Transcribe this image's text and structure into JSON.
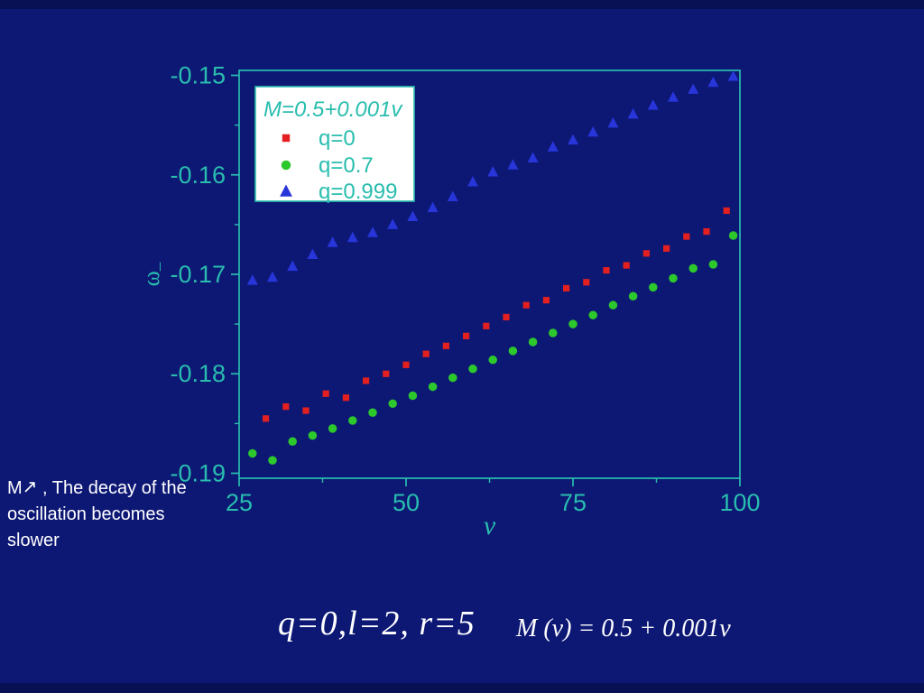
{
  "slide": {
    "note": {
      "line1_prefix": "M",
      "arrow_icon": "↗",
      "line1_suffix": " ,  The decay of the",
      "line2": "oscillation becomes",
      "line3": "slower"
    },
    "caption": "q=0,l=2, r=5",
    "formula": "M (v) = 0.5 + 0.001v"
  },
  "colors": {
    "background": "#0d1875",
    "strip": "#071153",
    "text": "#ffffff",
    "axis": "#29bdae",
    "legend_bg": "#ffffff",
    "series_red": "#e31f1f",
    "series_green": "#2cc82c",
    "series_blue": "#2735d9"
  },
  "chart_data": {
    "type": "scatter",
    "title": "",
    "xlabel": "v",
    "ylabel_main": "ω",
    "ylabel_sub": "–",
    "xlim": [
      25,
      100
    ],
    "ylim": [
      -0.1905,
      -0.1495
    ],
    "grid": false,
    "x_ticks": [
      25,
      50,
      75,
      100
    ],
    "x_tick_labels": [
      "25",
      "50",
      "75",
      "100"
    ],
    "x_minor_ticks": [
      37.5,
      62.5,
      87.5
    ],
    "y_ticks": [
      -0.15,
      -0.16,
      -0.17,
      -0.18,
      -0.19
    ],
    "y_tick_labels": [
      "-0.15",
      "-0.16",
      "-0.17",
      "-0.18",
      "-0.19"
    ],
    "y_minor_ticks": [
      -0.155,
      -0.165,
      -0.175,
      -0.185
    ],
    "legend": {
      "position": "top-left",
      "title": "M=0.5+0.001v",
      "entries": [
        {
          "label": "q=0",
          "marker": "square",
          "color": "#e31f1f"
        },
        {
          "label": "q=0.7",
          "marker": "circle",
          "color": "#2cc82c"
        },
        {
          "label": "q=0.999",
          "marker": "triangle",
          "color": "#2735d9"
        }
      ]
    },
    "series": [
      {
        "name": "q=0",
        "marker": "square",
        "color": "#e31f1f",
        "points": [
          [
            29,
            -0.1845
          ],
          [
            32,
            -0.1833
          ],
          [
            35,
            -0.1837
          ],
          [
            38,
            -0.182
          ],
          [
            41,
            -0.1824
          ],
          [
            44,
            -0.1807
          ],
          [
            47,
            -0.18
          ],
          [
            50,
            -0.1791
          ],
          [
            53,
            -0.178
          ],
          [
            56,
            -0.1772
          ],
          [
            59,
            -0.1762
          ],
          [
            62,
            -0.1752
          ],
          [
            65,
            -0.1743
          ],
          [
            68,
            -0.1731
          ],
          [
            71,
            -0.1726
          ],
          [
            74,
            -0.1714
          ],
          [
            77,
            -0.1708
          ],
          [
            80,
            -0.1696
          ],
          [
            83,
            -0.1691
          ],
          [
            86,
            -0.1679
          ],
          [
            89,
            -0.1674
          ],
          [
            92,
            -0.1662
          ],
          [
            95,
            -0.1657
          ],
          [
            98,
            -0.1636
          ]
        ]
      },
      {
        "name": "q=0.7",
        "marker": "circle",
        "color": "#2cc82c",
        "points": [
          [
            27,
            -0.188
          ],
          [
            30,
            -0.1887
          ],
          [
            33,
            -0.1868
          ],
          [
            36,
            -0.1862
          ],
          [
            39,
            -0.1855
          ],
          [
            42,
            -0.1847
          ],
          [
            45,
            -0.1839
          ],
          [
            48,
            -0.183
          ],
          [
            51,
            -0.1822
          ],
          [
            54,
            -0.1813
          ],
          [
            57,
            -0.1804
          ],
          [
            60,
            -0.1795
          ],
          [
            63,
            -0.1786
          ],
          [
            66,
            -0.1777
          ],
          [
            69,
            -0.1768
          ],
          [
            72,
            -0.1759
          ],
          [
            75,
            -0.175
          ],
          [
            78,
            -0.1741
          ],
          [
            81,
            -0.1731
          ],
          [
            84,
            -0.1722
          ],
          [
            87,
            -0.1713
          ],
          [
            90,
            -0.1704
          ],
          [
            93,
            -0.1694
          ],
          [
            96,
            -0.169
          ],
          [
            99,
            -0.1661
          ]
        ]
      },
      {
        "name": "q=0.999",
        "marker": "triangle",
        "color": "#2735d9",
        "points": [
          [
            27,
            -0.1706
          ],
          [
            30,
            -0.1703
          ],
          [
            33,
            -0.1692
          ],
          [
            36,
            -0.168
          ],
          [
            39,
            -0.1668
          ],
          [
            42,
            -0.1663
          ],
          [
            45,
            -0.1658
          ],
          [
            48,
            -0.165
          ],
          [
            51,
            -0.1642
          ],
          [
            54,
            -0.1633
          ],
          [
            57,
            -0.1622
          ],
          [
            60,
            -0.1607
          ],
          [
            63,
            -0.1597
          ],
          [
            66,
            -0.159
          ],
          [
            69,
            -0.1583
          ],
          [
            72,
            -0.1572
          ],
          [
            75,
            -0.1565
          ],
          [
            78,
            -0.1557
          ],
          [
            81,
            -0.1548
          ],
          [
            84,
            -0.1539
          ],
          [
            87,
            -0.153
          ],
          [
            90,
            -0.1522
          ],
          [
            93,
            -0.1514
          ],
          [
            96,
            -0.1507
          ],
          [
            99,
            -0.1501
          ]
        ]
      }
    ]
  }
}
